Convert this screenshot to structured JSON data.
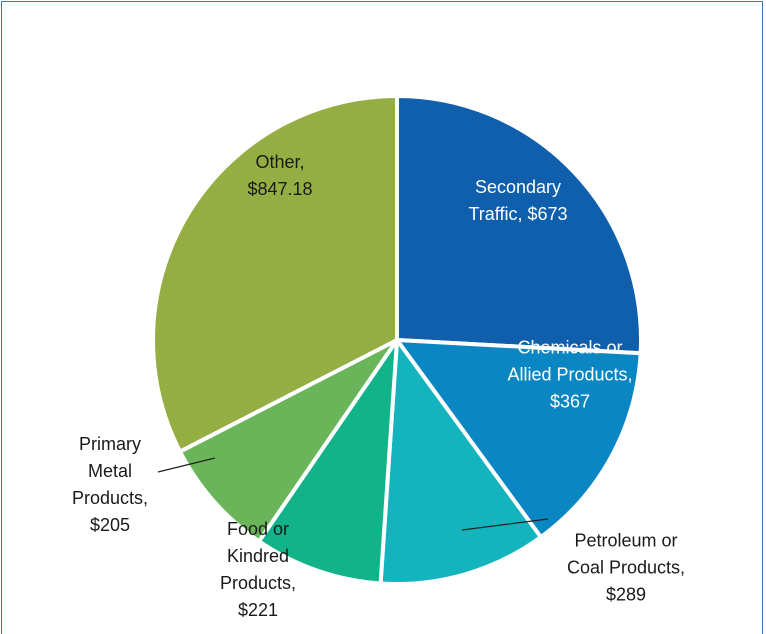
{
  "chart_data": {
    "type": "pie",
    "categories": [
      "Secondary Traffic",
      "Chemicals or Allied Products",
      "Petroleum or Coal Products",
      "Food or Kindred Products",
      "Primary Metal Products",
      "Other"
    ],
    "values": [
      673,
      367,
      289,
      221,
      205,
      847.18
    ],
    "value_labels": [
      "$673",
      "$367",
      "$289",
      "$221",
      "$205",
      "$847.18"
    ],
    "colors": [
      "#0f5fad",
      "#0a87c2",
      "#14b4be",
      "#13b38a",
      "#6ab45a",
      "#95ae43"
    ]
  }
}
